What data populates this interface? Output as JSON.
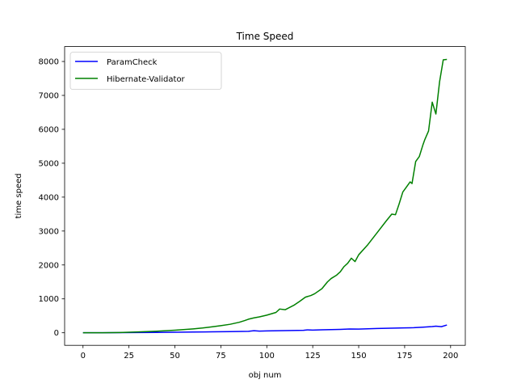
{
  "chart_data": {
    "type": "line",
    "title": "Time Speed",
    "xlabel": "obj num",
    "ylabel": "time speed",
    "xlim": [
      -10,
      208
    ],
    "ylim": [
      -370,
      8440
    ],
    "xticks": [
      0,
      25,
      50,
      75,
      100,
      125,
      150,
      175,
      200
    ],
    "yticks": [
      0,
      1000,
      2000,
      3000,
      4000,
      5000,
      6000,
      7000,
      8000
    ],
    "grid": false,
    "legend": "top-left",
    "series": [
      {
        "name": "ParamCheck",
        "color": "#0000ff",
        "x": [
          0,
          10,
          20,
          30,
          40,
          50,
          60,
          70,
          80,
          90,
          93,
          96,
          100,
          110,
          120,
          122,
          125,
          130,
          140,
          145,
          150,
          155,
          160,
          165,
          170,
          175,
          180,
          185,
          190,
          192,
          195,
          198
        ],
        "values": [
          0,
          2,
          5,
          8,
          11,
          16,
          22,
          28,
          35,
          42,
          60,
          48,
          55,
          65,
          72,
          85,
          80,
          88,
          100,
          112,
          108,
          118,
          125,
          132,
          138,
          145,
          150,
          165,
          182,
          195,
          180,
          230
        ]
      },
      {
        "name": "Hibernate-Validator",
        "color": "#008000",
        "x": [
          0,
          10,
          20,
          25,
          30,
          40,
          50,
          60,
          65,
          70,
          75,
          80,
          85,
          88,
          90,
          93,
          96,
          100,
          105,
          107,
          110,
          115,
          118,
          121,
          124,
          126,
          130,
          133,
          135,
          138,
          140,
          142,
          144,
          146,
          148,
          150,
          155,
          160,
          165,
          168,
          170,
          172,
          174,
          176,
          178,
          179,
          181,
          183,
          185,
          186,
          188,
          190,
          192,
          194,
          196,
          198
        ],
        "values": [
          0,
          2,
          8,
          15,
          25,
          45,
          75,
          115,
          140,
          175,
          210,
          250,
          310,
          360,
          400,
          440,
          470,
          520,
          600,
          700,
          680,
          820,
          930,
          1050,
          1100,
          1150,
          1300,
          1500,
          1600,
          1700,
          1800,
          1950,
          2050,
          2200,
          2100,
          2300,
          2600,
          2950,
          3300,
          3500,
          3480,
          3800,
          4150,
          4300,
          4450,
          4400,
          5050,
          5200,
          5550,
          5700,
          5950,
          6800,
          6450,
          7400,
          8050,
          8060
        ]
      }
    ]
  }
}
